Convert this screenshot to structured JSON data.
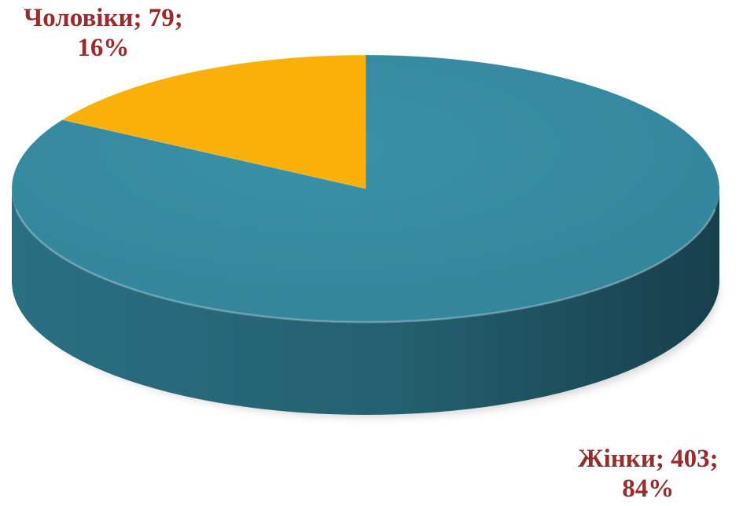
{
  "chart_data": {
    "type": "pie",
    "style": "3d",
    "slices": [
      {
        "name": "Жінки",
        "value": 403,
        "percent": "84%",
        "color": "#368A9F",
        "side_color": "#22596A"
      },
      {
        "name": "Чоловіки",
        "value": 79,
        "percent": "16%",
        "color": "#F9B109",
        "side_color": "#B57E05"
      }
    ],
    "data_labels": [
      {
        "line1": "Жінки; 403;",
        "line2": "84%"
      },
      {
        "line1": "Чоловіки; 79;",
        "line2": "16%"
      }
    ],
    "label_color": "#9B2B2B",
    "legend": "none"
  }
}
